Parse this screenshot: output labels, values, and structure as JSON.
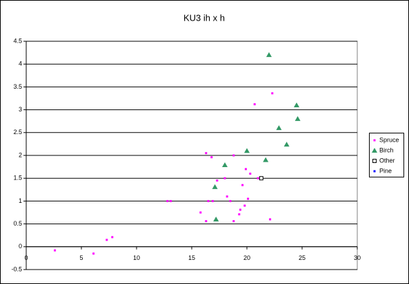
{
  "chart_data": {
    "type": "scatter",
    "title": "KU3 ih x h",
    "xlim": [
      0,
      30
    ],
    "xticks": [
      0,
      5,
      10,
      15,
      20,
      25,
      30
    ],
    "ylim": [
      -0.5,
      4.5
    ],
    "yticks": [
      -0.5,
      0,
      0.5,
      1,
      1.5,
      2,
      2.5,
      3,
      3.5,
      4,
      4.5
    ],
    "grid": true,
    "legend": "right",
    "series": [
      {
        "name": "Spruce",
        "color": "#ff00ff",
        "marker": "square",
        "x": [
          2.6,
          6.1,
          7.3,
          7.8,
          12.8,
          13.1,
          15.8,
          16.3,
          16.3,
          16.5,
          16.8,
          16.9,
          17.3,
          18.0,
          18.2,
          18.5,
          18.8,
          18.8,
          19.3,
          19.4,
          19.6,
          19.8,
          19.9,
          20.1,
          20.3,
          20.7,
          21.0,
          22.1,
          22.3
        ],
        "values": [
          -0.08,
          -0.15,
          0.15,
          0.21,
          1.0,
          1.0,
          0.75,
          2.05,
          0.56,
          1.0,
          1.96,
          1.0,
          1.45,
          1.5,
          1.1,
          1.0,
          2.0,
          0.56,
          0.71,
          0.81,
          1.35,
          0.9,
          1.7,
          1.05,
          1.6,
          3.12,
          1.5,
          0.6,
          3.36
        ]
      },
      {
        "name": "Birch",
        "color": "#339966",
        "marker": "triangle",
        "x": [
          22.0,
          24.5,
          24.6,
          22.9,
          23.6,
          20.0,
          21.7,
          18.0,
          17.1,
          17.2
        ],
        "values": [
          4.2,
          3.1,
          2.8,
          2.6,
          2.24,
          2.1,
          1.9,
          1.79,
          1.31,
          0.6
        ]
      },
      {
        "name": "Other",
        "color": "#000000",
        "marker": "open-square",
        "x": [
          21.3
        ],
        "values": [
          1.5
        ]
      },
      {
        "name": "Pine",
        "color": "#0000ff",
        "marker": "square",
        "x": [],
        "values": []
      }
    ]
  }
}
